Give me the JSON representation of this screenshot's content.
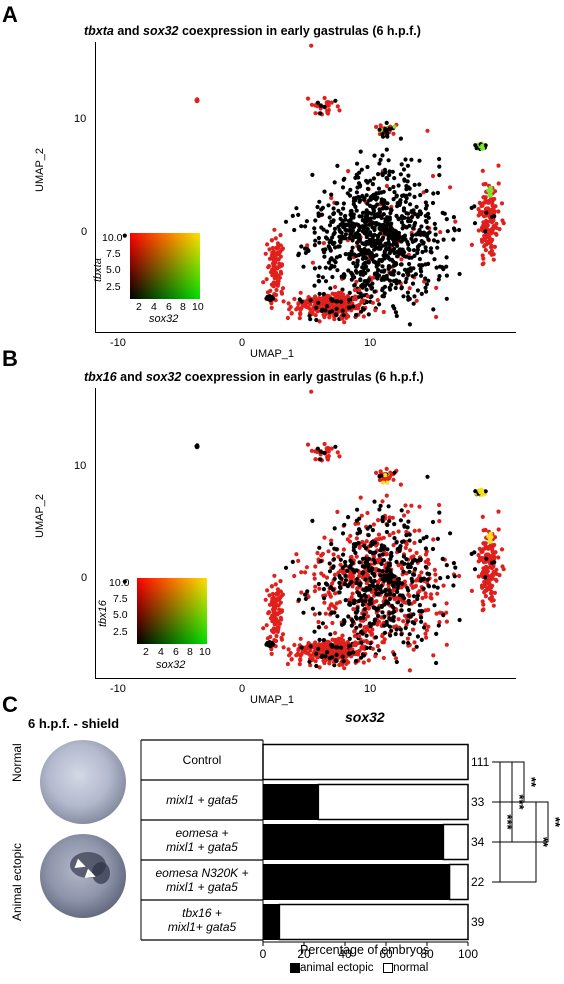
{
  "panels": {
    "a": {
      "letter": "A",
      "title_parts": [
        "tbxta",
        " and ",
        "sox32",
        " coexpression in early gastrulas (6 h.p.f.)"
      ],
      "xlabel": "UMAP_1",
      "ylabel": "UMAP_2",
      "xticks": [
        "-10",
        "0",
        "10"
      ],
      "yticks": [
        "10",
        "0"
      ],
      "legend": {
        "ylabel": "tbxta",
        "xlabel": "sox32",
        "yticks": [
          "10.0",
          "7.5",
          "5.0",
          "2.5"
        ],
        "xticks": [
          "2",
          "4",
          "6",
          "8",
          "10"
        ]
      }
    },
    "b": {
      "letter": "B",
      "title_parts": [
        "tbx16",
        " and ",
        "sox32",
        " coexpression in early gastrulas (6 h.p.f.)"
      ],
      "xlabel": "UMAP_1",
      "ylabel": "UMAP_2",
      "xticks": [
        "-10",
        "0",
        "10"
      ],
      "yticks": [
        "10",
        "0"
      ],
      "legend": {
        "ylabel": "tbx16",
        "xlabel": "sox32",
        "yticks": [
          "10.0",
          "7.5",
          "5.0",
          "2.5"
        ],
        "xticks": [
          "2",
          "4",
          "6",
          "8",
          "10"
        ]
      }
    },
    "c": {
      "letter": "C",
      "stage_label": "6 h.p.f. - shield",
      "gene_title": "sox32",
      "image_labels": [
        "Normal",
        "Animal ectopic"
      ],
      "xlabel": "Percentage of embryos",
      "legend_animal": "animal ectopic",
      "legend_normal": "normal",
      "significance": [
        "**",
        "***",
        "***",
        "**",
        "**"
      ]
    }
  },
  "colors": {
    "red": "#e0201c",
    "black": "#000000",
    "yellow": "#f2e11c",
    "green": "#7ee62a"
  },
  "chart_data": [
    {
      "type": "scatter",
      "title": "tbxta and sox32 coexpression in early gastrulas (6 h.p.f.)",
      "xlabel": "UMAP_1",
      "ylabel": "UMAP_2",
      "xlim": [
        -12,
        17
      ],
      "ylim": [
        -7,
        15.5
      ],
      "clusters": [
        {
          "x": 7.5,
          "y": 0.5,
          "sx": 2.2,
          "sy": 2.5,
          "n": 950,
          "mix": {
            "black": 0.93,
            "red": 0.07
          }
        },
        {
          "x": 4.3,
          "y": -4.9,
          "sx": 1.2,
          "sy": 0.5,
          "n": 320,
          "mix": {
            "red": 0.9,
            "black": 0.1
          }
        },
        {
          "x": 0.4,
          "y": -2.0,
          "sx": 0.25,
          "sy": 1.1,
          "n": 110,
          "mix": {
            "red": 1.0
          }
        },
        {
          "x": 0.0,
          "y": -4.4,
          "sx": 0.12,
          "sy": 0.12,
          "n": 12,
          "mix": {
            "black": 0.8,
            "red": 0.2
          }
        },
        {
          "x": 15.0,
          "y": 1.7,
          "sx": 0.4,
          "sy": 1.5,
          "n": 150,
          "mix": {
            "red": 0.95,
            "black": 0.05
          }
        },
        {
          "x": 15.2,
          "y": 4.0,
          "sx": 0.12,
          "sy": 0.2,
          "n": 8,
          "mix": {
            "green": 1.0
          }
        },
        {
          "x": 14.5,
          "y": 7.4,
          "sx": 0.2,
          "sy": 0.12,
          "n": 24,
          "mix": {
            "green": 0.75,
            "black": 0.25
          }
        },
        {
          "x": 7.9,
          "y": 8.6,
          "sx": 0.35,
          "sy": 0.3,
          "n": 35,
          "mix": {
            "red": 0.6,
            "black": 0.25,
            "green": 0.15
          }
        },
        {
          "x": 3.7,
          "y": 10.5,
          "sx": 0.45,
          "sy": 0.3,
          "n": 32,
          "mix": {
            "red": 0.8,
            "black": 0.2
          }
        },
        {
          "x": -5.0,
          "y": 11.0,
          "sx": 0.08,
          "sy": 0.08,
          "n": 4,
          "mix": {
            "red": 1.0
          }
        },
        {
          "x": 2.9,
          "y": 15.2,
          "sx": 0.03,
          "sy": 0.03,
          "n": 1,
          "mix": {
            "red": 1.0
          }
        },
        {
          "x": -10.0,
          "y": 0.5,
          "sx": 0.03,
          "sy": 0.03,
          "n": 1,
          "mix": {
            "black": 1.0
          }
        }
      ],
      "legend": {
        "type": "bivariate",
        "xlabel": "sox32",
        "ylabel": "tbxta",
        "range": [
          0,
          10
        ]
      }
    },
    {
      "type": "scatter",
      "title": "tbx16 and sox32 coexpression in early gastrulas (6 h.p.f.)",
      "xlabel": "UMAP_1",
      "ylabel": "UMAP_2",
      "xlim": [
        -12,
        17
      ],
      "ylim": [
        -7,
        15.5
      ],
      "clusters": [
        {
          "x": 7.5,
          "y": 0.5,
          "sx": 2.2,
          "sy": 2.5,
          "n": 950,
          "mix": {
            "red": 0.55,
            "black": 0.45
          }
        },
        {
          "x": 4.3,
          "y": -4.9,
          "sx": 1.2,
          "sy": 0.5,
          "n": 320,
          "mix": {
            "red": 0.9,
            "black": 0.1
          }
        },
        {
          "x": 0.4,
          "y": -2.0,
          "sx": 0.25,
          "sy": 1.1,
          "n": 110,
          "mix": {
            "red": 1.0
          }
        },
        {
          "x": 0.0,
          "y": -4.4,
          "sx": 0.12,
          "sy": 0.12,
          "n": 12,
          "mix": {
            "black": 0.8,
            "red": 0.2
          }
        },
        {
          "x": 15.0,
          "y": 1.7,
          "sx": 0.4,
          "sy": 1.5,
          "n": 150,
          "mix": {
            "red": 0.95,
            "black": 0.05
          }
        },
        {
          "x": 15.2,
          "y": 4.0,
          "sx": 0.12,
          "sy": 0.2,
          "n": 8,
          "mix": {
            "yellow": 1.0
          }
        },
        {
          "x": 14.5,
          "y": 7.4,
          "sx": 0.2,
          "sy": 0.12,
          "n": 24,
          "mix": {
            "yellow": 0.85,
            "black": 0.15
          }
        },
        {
          "x": 7.9,
          "y": 8.6,
          "sx": 0.35,
          "sy": 0.3,
          "n": 35,
          "mix": {
            "red": 0.75,
            "yellow": 0.1,
            "black": 0.15
          }
        },
        {
          "x": 3.7,
          "y": 10.5,
          "sx": 0.45,
          "sy": 0.3,
          "n": 32,
          "mix": {
            "red": 0.8,
            "black": 0.2
          }
        },
        {
          "x": -5.0,
          "y": 11.0,
          "sx": 0.08,
          "sy": 0.08,
          "n": 4,
          "mix": {
            "black": 1.0
          }
        },
        {
          "x": 2.9,
          "y": 15.2,
          "sx": 0.03,
          "sy": 0.03,
          "n": 1,
          "mix": {
            "red": 1.0
          }
        },
        {
          "x": -10.0,
          "y": 0.5,
          "sx": 0.03,
          "sy": 0.03,
          "n": 1,
          "mix": {
            "black": 1.0
          }
        }
      ],
      "legend": {
        "type": "bivariate",
        "xlabel": "sox32",
        "ylabel": "tbx16",
        "range": [
          0,
          10
        ]
      }
    },
    {
      "type": "bar",
      "orientation": "horizontal",
      "stacked": true,
      "title": "sox32",
      "xlabel": "Percentage of embryos",
      "xlim": [
        0,
        100
      ],
      "xticks": [
        0,
        20,
        40,
        60,
        80,
        100
      ],
      "categories": [
        "Control",
        "mixl1 + gata5",
        "eomesa + mixl1 + gata5",
        "eomesa N320K + mixl1 + gata5",
        "tbx16 + mixl1+ gata5"
      ],
      "category_lines": [
        [
          {
            "t": "Control",
            "i": false
          }
        ],
        [
          {
            "t": "mixl1 + gata5",
            "i": true
          }
        ],
        [
          {
            "t": "eomesa +",
            "i": true
          },
          {
            "t": "mixl1 + gata5",
            "i": true
          }
        ],
        [
          {
            "t": "eomesa N320K +",
            "i": true
          },
          {
            "t": "mixl1 + gata5",
            "i": true
          }
        ],
        [
          {
            "t": "tbx16 +",
            "i": true
          },
          {
            "t": "mixl1+ gata5",
            "i": true
          }
        ]
      ],
      "series": [
        {
          "name": "animal ectopic",
          "values": [
            0,
            27,
            88,
            91,
            8
          ]
        },
        {
          "name": "normal",
          "values": [
            100,
            73,
            12,
            9,
            92
          ]
        }
      ],
      "n": [
        "111",
        "33",
        "34",
        "22",
        "39"
      ]
    }
  ]
}
